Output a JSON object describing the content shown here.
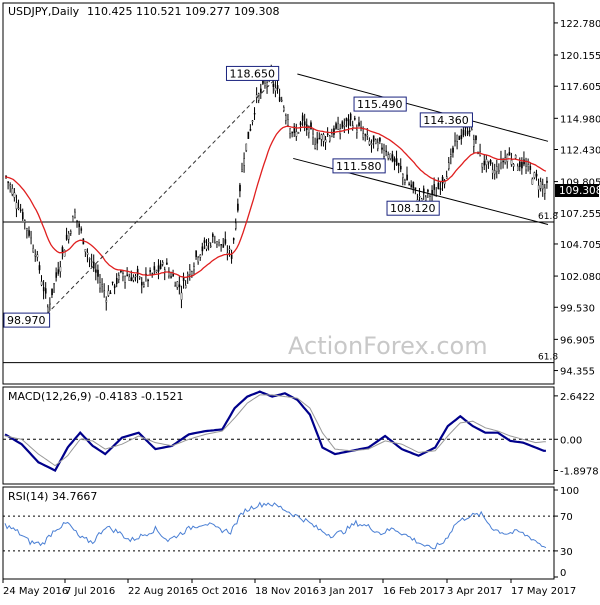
{
  "header": {
    "symbol": "USDJPY,Daily",
    "ohlc": "110.425 110.521 109.277 109.308",
    "last_price_badge": "109.308"
  },
  "watermark": "ActionForex.com",
  "colors": {
    "candles": "#000000",
    "ema": "#e02020",
    "macd": "#00008b",
    "macd_signal": "#999999",
    "rsi": "#4a7fd4",
    "frame": "#000000",
    "grid_dash": "#333333"
  },
  "chart_data": [
    {
      "type": "candlestick",
      "title": "USDJPY,Daily",
      "x_ticks": [
        "24 May 2016",
        "7 Jul 2016",
        "22 Aug 2016",
        "5 Oct 2016",
        "18 Nov 2016",
        "3 Jan 2017",
        "16 Feb 2017",
        "3 Apr 2017",
        "17 May 2017"
      ],
      "y_ticks": [
        "122.780",
        "120.155",
        "117.605",
        "114.980",
        "112.430",
        "109.805",
        "107.255",
        "104.705",
        "102.080",
        "99.530",
        "96.905",
        "94.355"
      ],
      "ylim": [
        93.5,
        124.0
      ],
      "n_bars": 260,
      "close_path": {
        "bar": [
          0,
          6,
          14,
          20,
          28,
          33,
          40,
          48,
          56,
          66,
          76,
          84,
          92,
          100,
          108,
          114,
          120,
          126,
          132,
          138,
          142,
          148,
          156,
          166,
          174,
          182,
          190,
          198,
          206,
          212,
          216,
          222,
          228,
          234,
          240,
          246,
          250,
          254,
          258
        ],
        "price": [
          110.2,
          108.0,
          104.2,
          99.5,
          104.5,
          107.2,
          103.5,
          100.5,
          102.3,
          101.6,
          103.0,
          101.0,
          104.0,
          105.2,
          103.8,
          112.0,
          116.5,
          118.3,
          116.5,
          113.5,
          114.6,
          113.2,
          113.8,
          114.8,
          113.0,
          112.5,
          110.4,
          108.4,
          108.9,
          111.0,
          113.3,
          114.2,
          111.5,
          110.6,
          112.0,
          111.3,
          110.8,
          110.0,
          109.3
        ]
      },
      "ema_series": "red moving average",
      "annotations": [
        {
          "label": "118.650",
          "bar": 132,
          "price": 118.65
        },
        {
          "label": "115.490",
          "bar": 170,
          "price": 115.49
        },
        {
          "label": "111.580",
          "bar": 158,
          "price": 111.58
        },
        {
          "label": "114.360",
          "bar": 220,
          "price": 114.36
        },
        {
          "label": "108.120",
          "bar": 206,
          "price": 108.12
        },
        {
          "label": "98.970",
          "bar": 20,
          "price": 98.97
        }
      ],
      "horizontal_lines": [
        {
          "price": 106.5,
          "label": "61.8"
        },
        {
          "price": 95.0,
          "label": "61.8"
        }
      ],
      "channel_upper": {
        "from": {
          "bar": 140,
          "price": 118.6
        },
        "to": {
          "bar": 260,
          "price": 113.1
        }
      },
      "channel_lower": {
        "from": {
          "bar": 138,
          "price": 111.7
        },
        "to": {
          "bar": 260,
          "price": 106.3
        }
      },
      "dashed_line": {
        "from": {
          "bar": 20,
          "price": 98.97
        },
        "to": {
          "bar": 132,
          "price": 118.65
        }
      }
    },
    {
      "type": "line",
      "title": "MACD(12,26,9) -0.4183 -0.1521",
      "y_ticks": [
        "2.6422",
        "0.00",
        "-1.8978"
      ],
      "ylim": [
        -2.6,
        3.0
      ],
      "series": [
        {
          "name": "MACD",
          "points": {
            "bar": [
              0,
              8,
              16,
              24,
              30,
              36,
              42,
              48,
              56,
              64,
              72,
              80,
              88,
              96,
              104,
              110,
              116,
              122,
              128,
              134,
              140,
              146,
              152,
              158,
              166,
              174,
              182,
              190,
              198,
              206,
              212,
              218,
              224,
              230,
              236,
              242,
              248,
              254,
              258
            ],
            "value": [
              0.3,
              -0.3,
              -1.4,
              -1.9,
              -0.5,
              0.4,
              -0.4,
              -0.9,
              0.1,
              0.4,
              -0.6,
              -0.4,
              0.3,
              0.5,
              0.6,
              1.9,
              2.6,
              2.9,
              2.6,
              2.8,
              2.4,
              1.5,
              -0.5,
              -0.9,
              -0.7,
              -0.5,
              0.2,
              -0.6,
              -1.0,
              -0.5,
              0.8,
              1.4,
              0.8,
              0.4,
              0.4,
              -0.1,
              -0.2,
              -0.5,
              -0.7
            ]
          }
        },
        {
          "name": "Signal",
          "points": {
            "bar": [
              0,
              8,
              16,
              24,
              30,
              36,
              42,
              48,
              56,
              64,
              72,
              80,
              88,
              96,
              104,
              110,
              116,
              122,
              128,
              134,
              140,
              146,
              152,
              158,
              166,
              174,
              182,
              190,
              198,
              206,
              212,
              218,
              224,
              230,
              236,
              242,
              248,
              254,
              258
            ],
            "value": [
              0.2,
              0.0,
              -0.9,
              -1.6,
              -1.0,
              0.0,
              -0.1,
              -0.6,
              -0.3,
              0.2,
              -0.2,
              -0.4,
              0.0,
              0.3,
              0.5,
              1.3,
              2.2,
              2.7,
              2.7,
              2.6,
              2.5,
              1.9,
              0.4,
              -0.6,
              -0.7,
              -0.6,
              -0.1,
              -0.3,
              -0.8,
              -0.7,
              0.2,
              1.0,
              1.1,
              0.7,
              0.5,
              0.2,
              0.0,
              -0.2,
              -0.15
            ]
          }
        }
      ]
    },
    {
      "type": "line",
      "title": "RSI(14) 34.7667",
      "y_ticks": [
        "100",
        "70",
        "30",
        "0"
      ],
      "ylim": [
        0,
        100
      ],
      "series": [
        {
          "name": "RSI",
          "points": {
            "bar": [
              0,
              6,
              12,
              18,
              24,
              30,
              36,
              42,
              48,
              54,
              60,
              66,
              72,
              78,
              84,
              90,
              96,
              102,
              108,
              114,
              120,
              126,
              132,
              138,
              144,
              150,
              156,
              162,
              168,
              174,
              180,
              186,
              192,
              198,
              204,
              210,
              216,
              222,
              228,
              234,
              240,
              246,
              252,
              258
            ],
            "value": [
              60,
              52,
              40,
              38,
              55,
              62,
              45,
              40,
              58,
              52,
              42,
              48,
              55,
              42,
              50,
              58,
              62,
              55,
              52,
              75,
              82,
              85,
              80,
              72,
              65,
              55,
              48,
              52,
              62,
              58,
              50,
              56,
              48,
              40,
              32,
              40,
              62,
              70,
              72,
              55,
              50,
              52,
              45,
              35
            ]
          }
        }
      ]
    }
  ]
}
